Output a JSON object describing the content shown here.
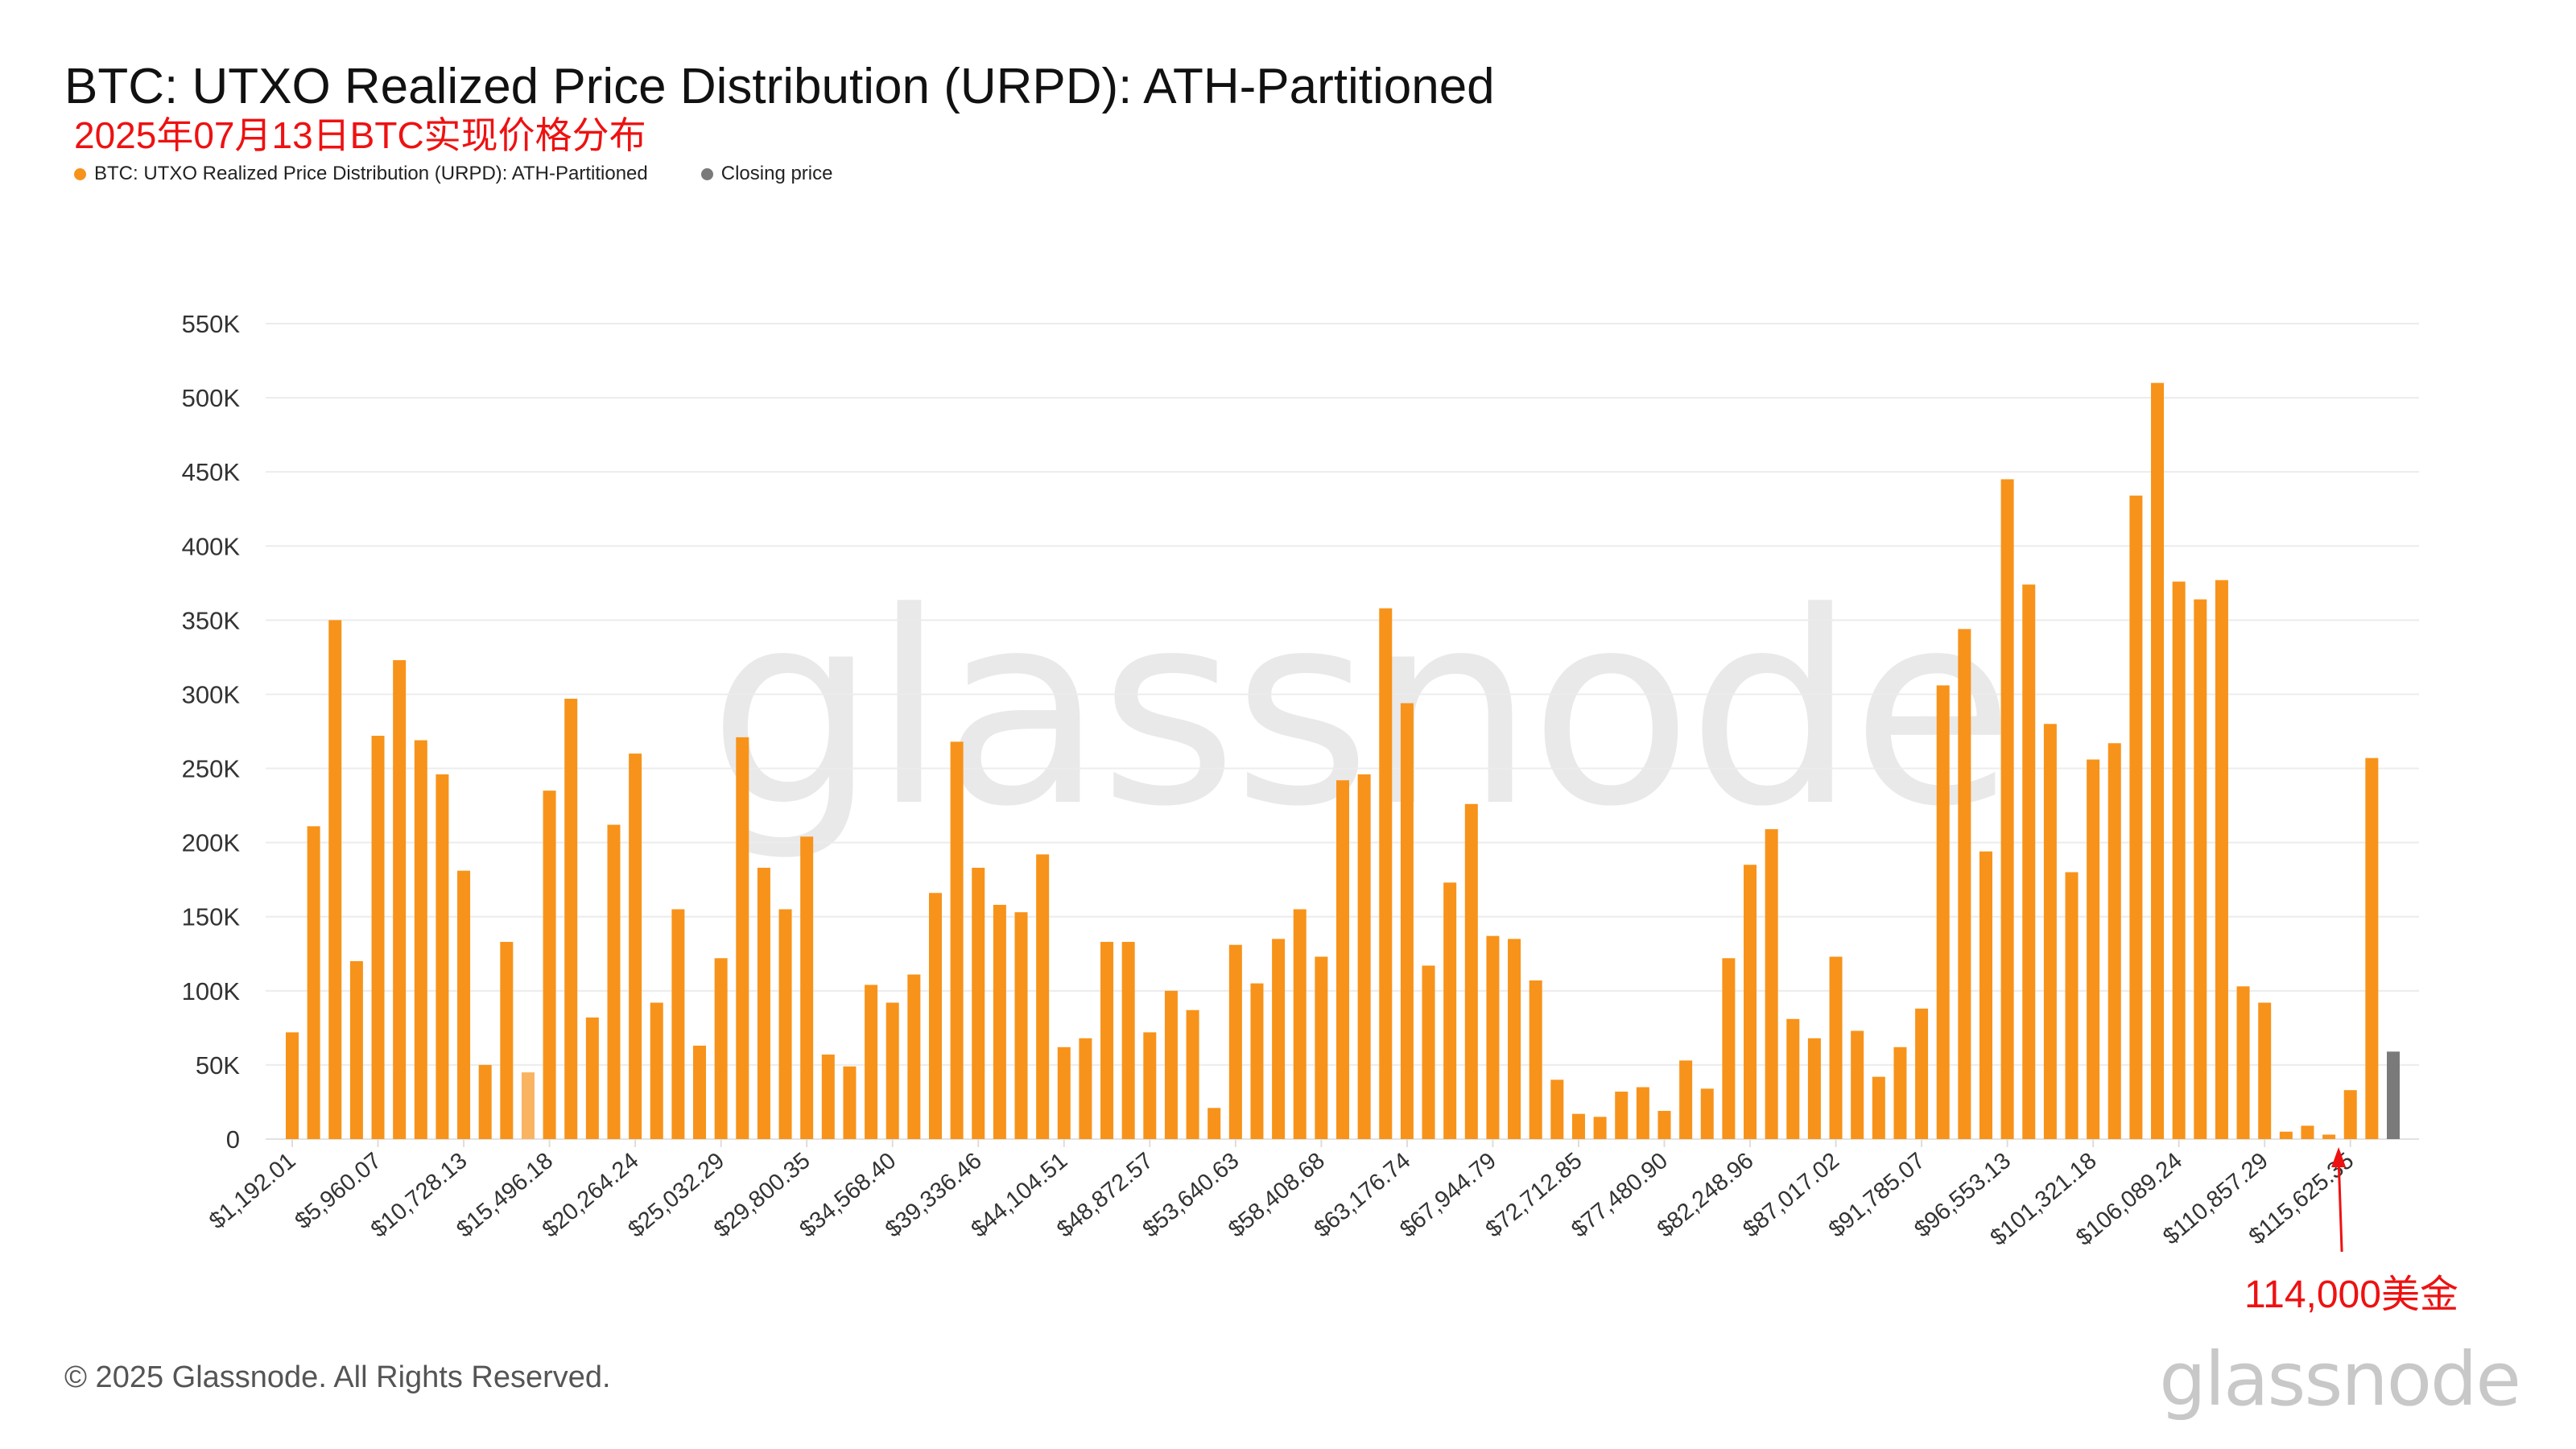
{
  "chart_data": {
    "type": "bar",
    "title": "BTC: UTXO Realized Price Distribution (URPD): ATH-Partitioned",
    "subtitle": "2025年07月13日BTC实现价格分布",
    "legend": [
      {
        "label": "BTC: UTXO Realized Price Distribution (URPD): ATH-Partitioned",
        "color": "#f7931a"
      },
      {
        "label": "Closing price",
        "color": "#7a7a7a"
      }
    ],
    "legend_placement": "top-left",
    "bin_width": 1192.01,
    "x_tick_labels": [
      "$1,192.01",
      "$5,960.07",
      "$10,728.13",
      "$15,496.18",
      "$20,264.24",
      "$25,032.29",
      "$29,800.35",
      "$34,568.40",
      "$39,336.46",
      "$44,104.51",
      "$48,872.57",
      "$53,640.63",
      "$58,408.68",
      "$63,176.74",
      "$67,944.79",
      "$72,712.85",
      "$77,480.90",
      "$82,248.96",
      "$87,017.02",
      "$91,785.07",
      "$96,553.13",
      "$101,321.18",
      "$106,089.24",
      "$110,857.29",
      "$115,625.35"
    ],
    "x_tick_every": 4,
    "y_tick_labels": [
      "0",
      "50K",
      "100K",
      "150K",
      "200K",
      "250K",
      "300K",
      "350K",
      "400K",
      "450K",
      "500K",
      "550K"
    ],
    "ylim": [
      0,
      550000
    ],
    "grid": true,
    "series": [
      {
        "name": "BTC: UTXO Realized Price Distribution (URPD): ATH-Partitioned",
        "color": "#f7931a",
        "highlight_index": 11,
        "highlight_color": "#f9b462",
        "values": [
          72000,
          211000,
          350000,
          120000,
          272000,
          323000,
          269000,
          246000,
          181000,
          50000,
          133000,
          45000,
          235000,
          297000,
          82000,
          212000,
          260000,
          92000,
          155000,
          63000,
          122000,
          271000,
          183000,
          155000,
          204000,
          57000,
          49000,
          104000,
          92000,
          111000,
          166000,
          268000,
          183000,
          158000,
          153000,
          192000,
          62000,
          68000,
          133000,
          133000,
          72000,
          100000,
          87000,
          21000,
          131000,
          105000,
          135000,
          155000,
          123000,
          242000,
          246000,
          358000,
          294000,
          117000,
          173000,
          226000,
          137000,
          135000,
          107000,
          40000,
          17000,
          15000,
          32000,
          35000,
          19000,
          53000,
          34000,
          122000,
          185000,
          209000,
          81000,
          68000,
          123000,
          73000,
          42000,
          62000,
          88000,
          306000,
          344000,
          194000,
          445000,
          374000,
          280000,
          180000,
          256000,
          267000,
          434000,
          510000,
          376000,
          364000,
          377000,
          103000,
          92000,
          5000,
          9000,
          3000,
          33000,
          257000
        ]
      },
      {
        "name": "Closing price",
        "color": "#7a7a7a",
        "values": [
          59000
        ]
      }
    ],
    "annotation": {
      "text": "114,000美金",
      "color": "#ee1111",
      "points_to_bar_index": 95
    }
  },
  "watermark": "glassnode",
  "footer": "© 2025 Glassnode. All Rights Reserved.",
  "logo": "glassnode"
}
